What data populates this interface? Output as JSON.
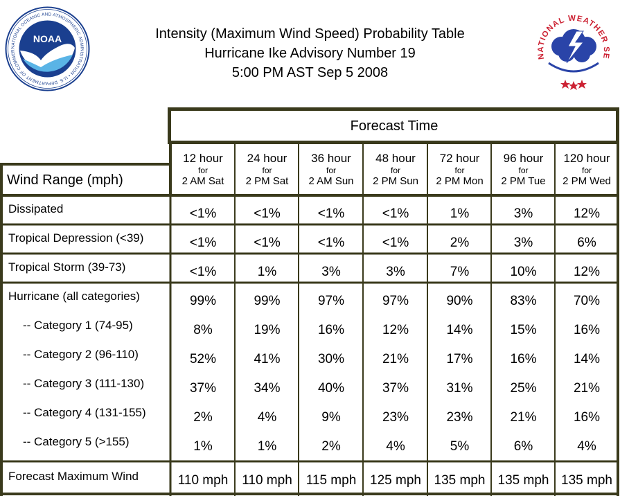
{
  "title": {
    "line1": "Intensity (Maximum Wind Speed) Probability Table",
    "line2": "Hurricane Ike Advisory Number 19",
    "line3": "5:00 PM AST Sep 5 2008"
  },
  "logos": {
    "noaa": {
      "label": "NOAA",
      "ring_text": "NATIONAL OCEANIC AND ATMOSPHERIC ADMINISTRATION • U.S. DEPARTMENT OF COMMERCE"
    },
    "nws": {
      "ring_text": "NATIONAL WEATHER SERVICE"
    }
  },
  "table": {
    "forecast_time_label": "Forecast Time",
    "wind_range_label": "Wind Range (mph)",
    "columns": [
      {
        "hours": "12 hour",
        "for": "for",
        "when": "2 AM Sat"
      },
      {
        "hours": "24 hour",
        "for": "for",
        "when": "2 PM Sat"
      },
      {
        "hours": "36 hour",
        "for": "for",
        "when": "2 AM Sun"
      },
      {
        "hours": "48 hour",
        "for": "for",
        "when": "2 PM Sun"
      },
      {
        "hours": "72 hour",
        "for": "for",
        "when": "2 PM Mon"
      },
      {
        "hours": "96 hour",
        "for": "for",
        "when": "2 PM Tue"
      },
      {
        "hours": "120 hour",
        "for": "for",
        "when": "2 PM Wed"
      }
    ],
    "rows": [
      {
        "label": "Dissipated",
        "values": [
          "<1%",
          "<1%",
          "<1%",
          "<1%",
          "1%",
          "3%",
          "12%"
        ]
      },
      {
        "label": "Tropical Depression (<39)",
        "values": [
          "<1%",
          "<1%",
          "<1%",
          "<1%",
          "2%",
          "3%",
          "6%"
        ]
      },
      {
        "label": "Tropical Storm (39-73)",
        "values": [
          "<1%",
          "1%",
          "3%",
          "3%",
          "7%",
          "10%",
          "12%"
        ]
      },
      {
        "label": "Hurricane (all categories)",
        "values": [
          "99%",
          "99%",
          "97%",
          "97%",
          "90%",
          "83%",
          "70%"
        ]
      },
      {
        "label": "-- Category 1 (74-95)",
        "values": [
          "8%",
          "19%",
          "16%",
          "12%",
          "14%",
          "15%",
          "16%"
        ]
      },
      {
        "label": "-- Category 2 (96-110)",
        "values": [
          "52%",
          "41%",
          "30%",
          "21%",
          "17%",
          "16%",
          "14%"
        ]
      },
      {
        "label": "-- Category 3 (111-130)",
        "values": [
          "37%",
          "34%",
          "40%",
          "37%",
          "31%",
          "25%",
          "21%"
        ]
      },
      {
        "label": "-- Category 4 (131-155)",
        "values": [
          "2%",
          "4%",
          "9%",
          "23%",
          "23%",
          "21%",
          "16%"
        ]
      },
      {
        "label": "-- Category 5 (>155)",
        "values": [
          "1%",
          "1%",
          "2%",
          "4%",
          "5%",
          "6%",
          "4%"
        ]
      },
      {
        "label": "Forecast Maximum Wind",
        "values": [
          "110 mph",
          "110 mph",
          "115 mph",
          "125 mph",
          "135 mph",
          "135 mph",
          "135 mph"
        ]
      }
    ]
  },
  "colors": {
    "border": "#3a3a1c",
    "noaa_blue": "#1a3f8f",
    "nws_blue": "#2a44a8",
    "nws_red": "#cc2233"
  }
}
